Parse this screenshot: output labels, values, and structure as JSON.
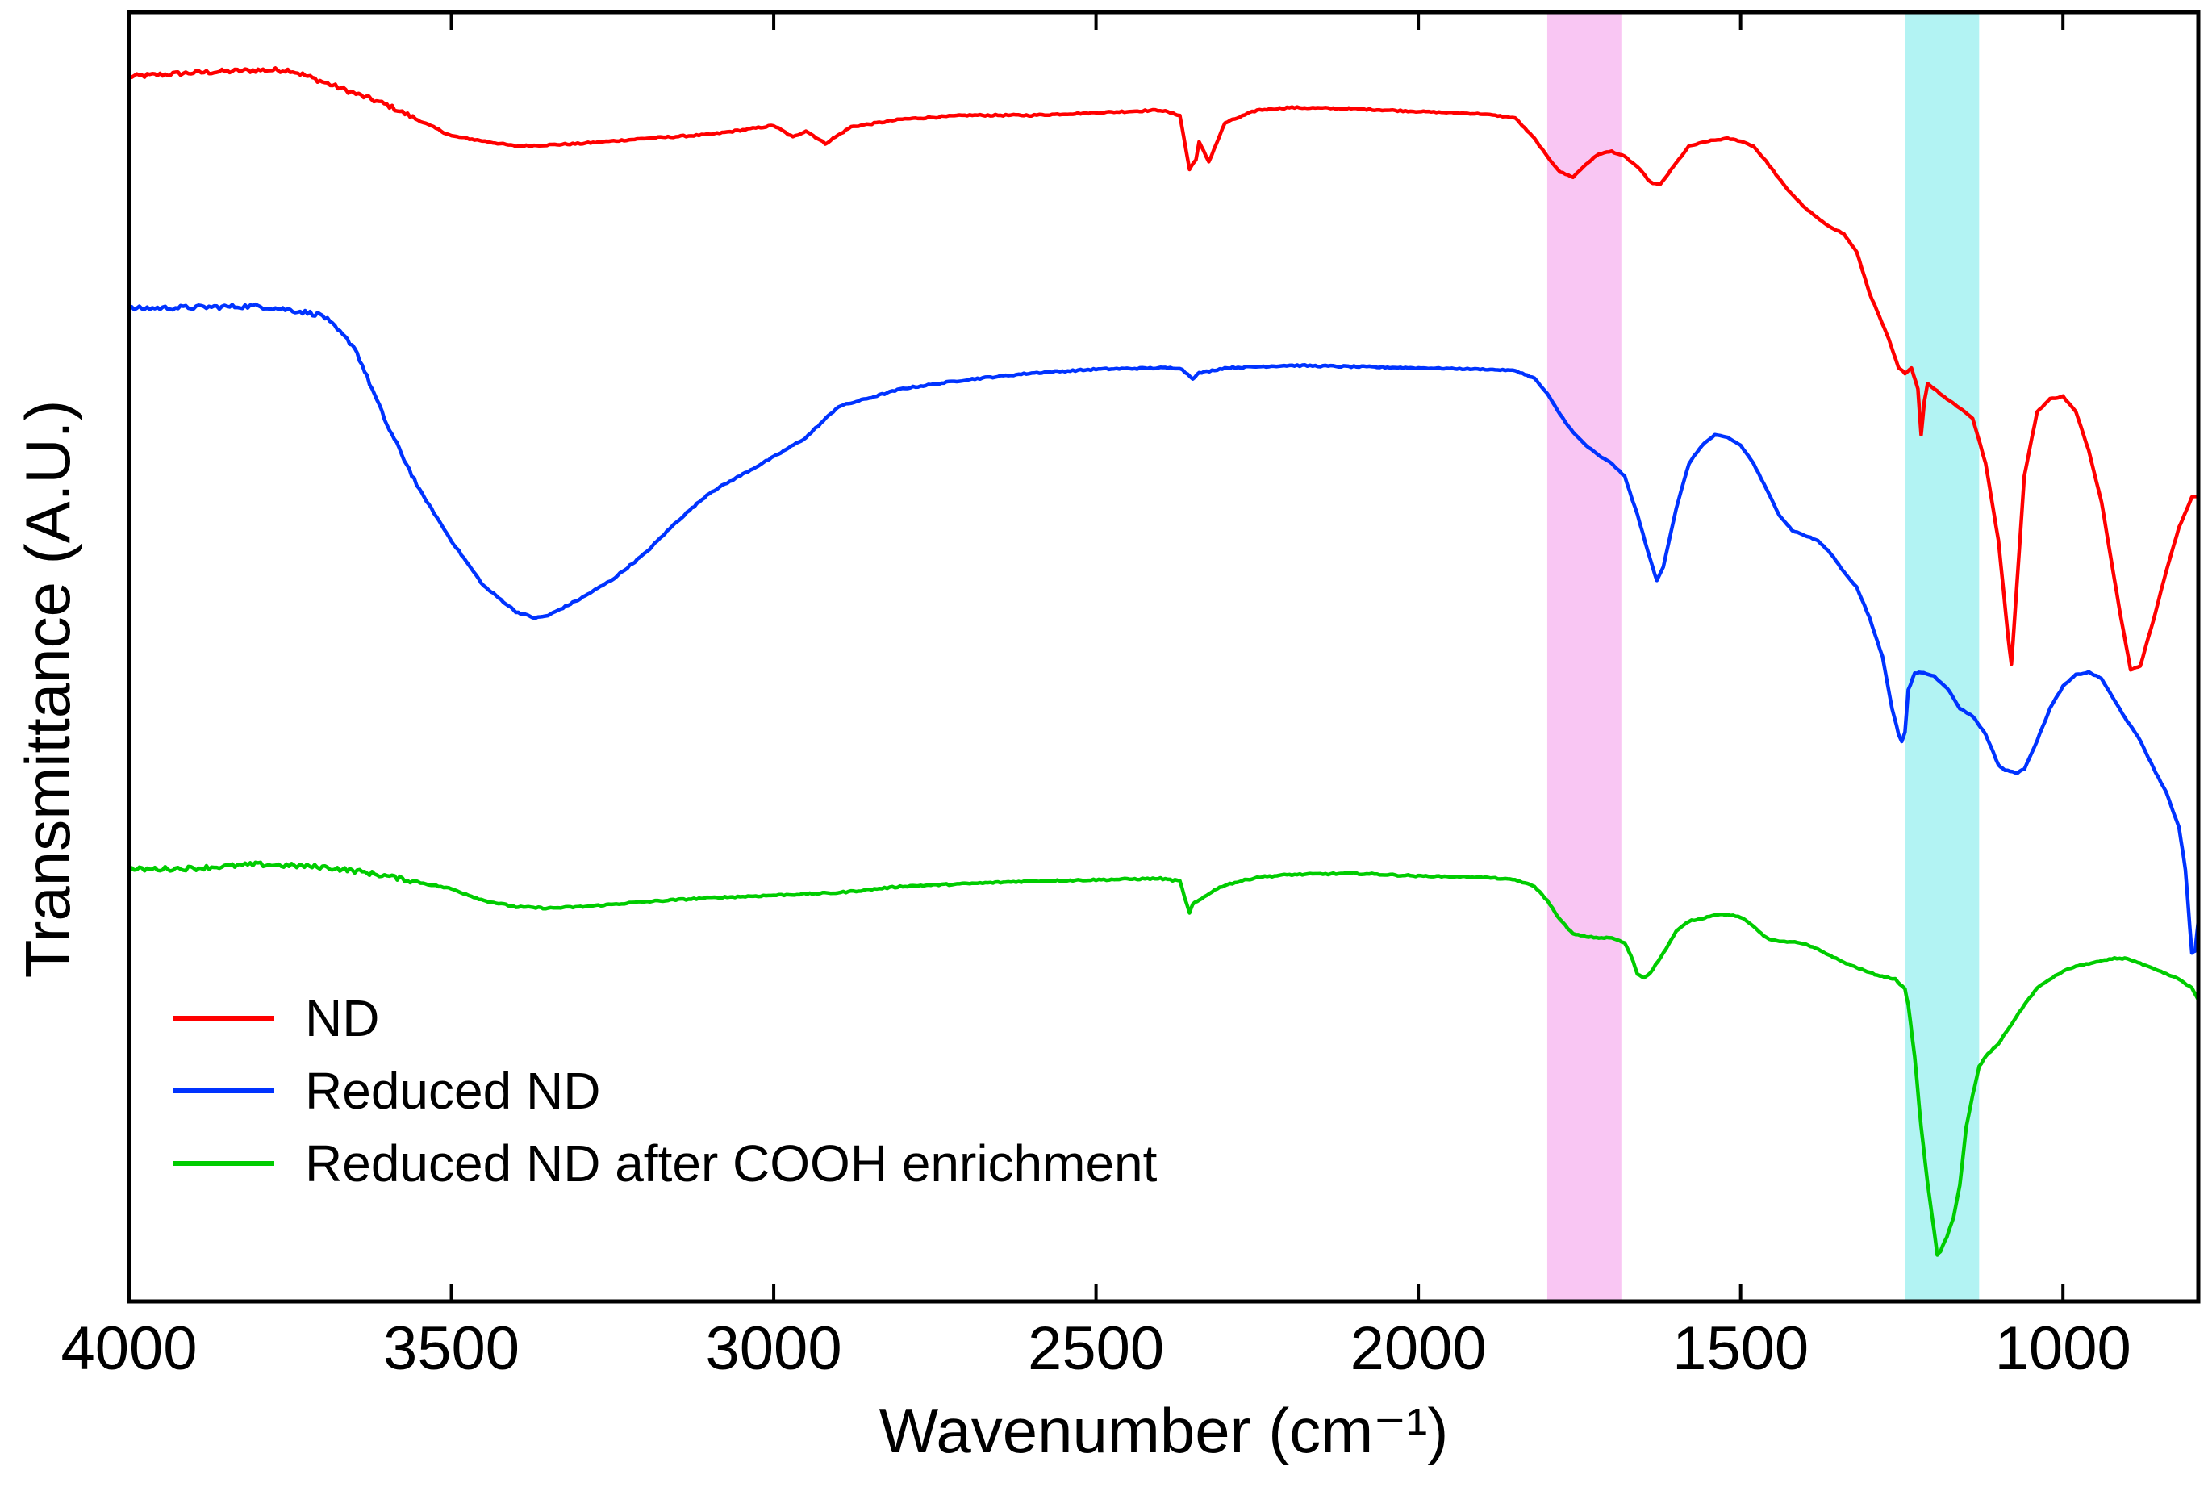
{
  "chart_data": {
    "type": "line",
    "title": "",
    "xlabel": "Wavenumber (cm⁻¹)",
    "ylabel": "Transmittance (A.U.)",
    "xlim": [
      4000,
      790
    ],
    "ylim": [
      0,
      100
    ],
    "x_reversed": true,
    "x_ticks": [
      {
        "value": 4000,
        "label": "4000"
      },
      {
        "value": 3500,
        "label": "3500"
      },
      {
        "value": 3000,
        "label": "3000"
      },
      {
        "value": 2500,
        "label": "2500"
      },
      {
        "value": 2000,
        "label": "2000"
      },
      {
        "value": 1500,
        "label": "1500"
      },
      {
        "value": 1000,
        "label": "1000"
      }
    ],
    "y_ticks_shown": false,
    "grid": false,
    "legend_position": "bottom-left",
    "highlight_bands": [
      {
        "name": "pink-band",
        "x_from": 1800,
        "x_to": 1685,
        "color": "#f7b8f0"
      },
      {
        "name": "cyan-band",
        "x_from": 1245,
        "x_to": 1130,
        "color": "#9ff0f0"
      }
    ],
    "series": [
      {
        "name": "ND",
        "color": "#ff0000",
        "points": [
          [
            4000,
            95.0
          ],
          [
            3900,
            95.3
          ],
          [
            3800,
            95.5
          ],
          [
            3750,
            95.5
          ],
          [
            3700,
            94.6
          ],
          [
            3600,
            92.8
          ],
          [
            3500,
            90.4
          ],
          [
            3400,
            89.6
          ],
          [
            3300,
            89.8
          ],
          [
            3200,
            90.2
          ],
          [
            3100,
            90.5
          ],
          [
            3000,
            91.2
          ],
          [
            2970,
            90.3
          ],
          [
            2950,
            90.8
          ],
          [
            2920,
            89.8
          ],
          [
            2880,
            91.1
          ],
          [
            2800,
            91.7
          ],
          [
            2700,
            92.0
          ],
          [
            2600,
            92.0
          ],
          [
            2500,
            92.2
          ],
          [
            2400,
            92.4
          ],
          [
            2370,
            92.0
          ],
          [
            2355,
            87.8
          ],
          [
            2345,
            88.6
          ],
          [
            2340,
            89.9
          ],
          [
            2325,
            88.4
          ],
          [
            2300,
            91.4
          ],
          [
            2250,
            92.4
          ],
          [
            2200,
            92.6
          ],
          [
            2100,
            92.5
          ],
          [
            2000,
            92.3
          ],
          [
            1900,
            92.1
          ],
          [
            1850,
            91.8
          ],
          [
            1820,
            90.2
          ],
          [
            1800,
            88.8
          ],
          [
            1780,
            87.6
          ],
          [
            1760,
            87.2
          ],
          [
            1740,
            88.2
          ],
          [
            1720,
            89.0
          ],
          [
            1700,
            89.2
          ],
          [
            1680,
            88.8
          ],
          [
            1660,
            88.0
          ],
          [
            1640,
            86.8
          ],
          [
            1625,
            86.6
          ],
          [
            1600,
            88.3
          ],
          [
            1580,
            89.6
          ],
          [
            1550,
            90.0
          ],
          [
            1520,
            90.2
          ],
          [
            1500,
            90.0
          ],
          [
            1480,
            89.6
          ],
          [
            1460,
            88.4
          ],
          [
            1430,
            86.4
          ],
          [
            1400,
            84.8
          ],
          [
            1370,
            83.6
          ],
          [
            1340,
            82.8
          ],
          [
            1320,
            81.4
          ],
          [
            1300,
            78.2
          ],
          [
            1270,
            74.6
          ],
          [
            1255,
            72.4
          ],
          [
            1245,
            72.0
          ],
          [
            1235,
            72.4
          ],
          [
            1225,
            70.8
          ],
          [
            1220,
            67.2
          ],
          [
            1215,
            69.8
          ],
          [
            1210,
            71.2
          ],
          [
            1195,
            70.6
          ],
          [
            1180,
            70.0
          ],
          [
            1160,
            69.3
          ],
          [
            1140,
            68.5
          ],
          [
            1120,
            65.0
          ],
          [
            1100,
            59.0
          ],
          [
            1085,
            51.5
          ],
          [
            1080,
            49.4
          ],
          [
            1075,
            53.0
          ],
          [
            1060,
            64.0
          ],
          [
            1040,
            69.0
          ],
          [
            1020,
            70.0
          ],
          [
            1000,
            70.2
          ],
          [
            980,
            69.0
          ],
          [
            960,
            66.0
          ],
          [
            940,
            62.0
          ],
          [
            920,
            56.0
          ],
          [
            910,
            53.0
          ],
          [
            895,
            49.0
          ],
          [
            880,
            49.3
          ],
          [
            860,
            52.8
          ],
          [
            840,
            56.6
          ],
          [
            820,
            60.0
          ],
          [
            800,
            62.4
          ],
          [
            790,
            62.5
          ]
        ]
      },
      {
        "name": "Reduced ND",
        "color": "#0033ff",
        "points": [
          [
            4000,
            77.0
          ],
          [
            3900,
            77.1
          ],
          [
            3800,
            77.2
          ],
          [
            3750,
            76.9
          ],
          [
            3700,
            76.5
          ],
          [
            3650,
            74.0
          ],
          [
            3600,
            68.0
          ],
          [
            3550,
            63.0
          ],
          [
            3500,
            59.0
          ],
          [
            3450,
            55.5
          ],
          [
            3400,
            53.5
          ],
          [
            3370,
            53.0
          ],
          [
            3350,
            53.2
          ],
          [
            3300,
            54.5
          ],
          [
            3250,
            56.0
          ],
          [
            3200,
            58.0
          ],
          [
            3150,
            60.5
          ],
          [
            3100,
            62.7
          ],
          [
            3000,
            65.5
          ],
          [
            2950,
            67.0
          ],
          [
            2900,
            69.4
          ],
          [
            2800,
            70.8
          ],
          [
            2700,
            71.5
          ],
          [
            2600,
            72.0
          ],
          [
            2500,
            72.3
          ],
          [
            2400,
            72.4
          ],
          [
            2370,
            72.4
          ],
          [
            2350,
            71.6
          ],
          [
            2340,
            72.0
          ],
          [
            2300,
            72.4
          ],
          [
            2200,
            72.6
          ],
          [
            2100,
            72.5
          ],
          [
            2000,
            72.4
          ],
          [
            1900,
            72.3
          ],
          [
            1850,
            72.2
          ],
          [
            1820,
            71.6
          ],
          [
            1800,
            70.4
          ],
          [
            1780,
            68.8
          ],
          [
            1760,
            67.4
          ],
          [
            1740,
            66.4
          ],
          [
            1720,
            65.6
          ],
          [
            1700,
            65.0
          ],
          [
            1680,
            64.0
          ],
          [
            1660,
            61.0
          ],
          [
            1640,
            57.5
          ],
          [
            1630,
            55.9
          ],
          [
            1620,
            57.0
          ],
          [
            1600,
            61.5
          ],
          [
            1580,
            65.0
          ],
          [
            1560,
            66.4
          ],
          [
            1540,
            67.2
          ],
          [
            1520,
            67.0
          ],
          [
            1500,
            66.4
          ],
          [
            1480,
            65.0
          ],
          [
            1460,
            63.0
          ],
          [
            1440,
            61.0
          ],
          [
            1420,
            59.8
          ],
          [
            1400,
            59.4
          ],
          [
            1380,
            59.0
          ],
          [
            1360,
            58.0
          ],
          [
            1340,
            56.6
          ],
          [
            1320,
            55.4
          ],
          [
            1300,
            53.0
          ],
          [
            1280,
            50.0
          ],
          [
            1265,
            46.0
          ],
          [
            1255,
            44.0
          ],
          [
            1250,
            43.4
          ],
          [
            1245,
            44.2
          ],
          [
            1240,
            47.4
          ],
          [
            1230,
            48.7
          ],
          [
            1220,
            48.8
          ],
          [
            1200,
            48.5
          ],
          [
            1180,
            47.6
          ],
          [
            1160,
            46.0
          ],
          [
            1140,
            45.4
          ],
          [
            1120,
            44.0
          ],
          [
            1100,
            41.6
          ],
          [
            1090,
            41.2
          ],
          [
            1070,
            41.0
          ],
          [
            1060,
            41.3
          ],
          [
            1040,
            43.5
          ],
          [
            1020,
            46.0
          ],
          [
            1000,
            47.7
          ],
          [
            980,
            48.6
          ],
          [
            960,
            48.8
          ],
          [
            940,
            48.3
          ],
          [
            920,
            46.6
          ],
          [
            900,
            45.0
          ],
          [
            880,
            43.5
          ],
          [
            860,
            41.4
          ],
          [
            840,
            39.5
          ],
          [
            820,
            36.8
          ],
          [
            810,
            33.5
          ],
          [
            800,
            27.0
          ],
          [
            795,
            27.2
          ],
          [
            790,
            29.5
          ]
        ]
      },
      {
        "name": "Reduced ND after COOH enrichment",
        "color": "#00cc00",
        "points": [
          [
            4000,
            33.5
          ],
          [
            3900,
            33.6
          ],
          [
            3800,
            33.9
          ],
          [
            3700,
            33.7
          ],
          [
            3650,
            33.4
          ],
          [
            3600,
            33.0
          ],
          [
            3500,
            32.0
          ],
          [
            3450,
            31.1
          ],
          [
            3400,
            30.6
          ],
          [
            3350,
            30.5
          ],
          [
            3300,
            30.6
          ],
          [
            3200,
            31.0
          ],
          [
            3100,
            31.3
          ],
          [
            3000,
            31.5
          ],
          [
            2900,
            31.7
          ],
          [
            2800,
            32.2
          ],
          [
            2700,
            32.4
          ],
          [
            2600,
            32.6
          ],
          [
            2500,
            32.7
          ],
          [
            2400,
            32.8
          ],
          [
            2370,
            32.6
          ],
          [
            2355,
            30.1
          ],
          [
            2350,
            30.8
          ],
          [
            2340,
            31.1
          ],
          [
            2320,
            31.8
          ],
          [
            2300,
            32.3
          ],
          [
            2250,
            32.9
          ],
          [
            2200,
            33.1
          ],
          [
            2100,
            33.2
          ],
          [
            2000,
            33.0
          ],
          [
            1900,
            32.9
          ],
          [
            1850,
            32.7
          ],
          [
            1820,
            32.2
          ],
          [
            1800,
            31.1
          ],
          [
            1780,
            29.6
          ],
          [
            1760,
            28.5
          ],
          [
            1740,
            28.3
          ],
          [
            1720,
            28.2
          ],
          [
            1700,
            28.2
          ],
          [
            1680,
            27.8
          ],
          [
            1670,
            26.8
          ],
          [
            1660,
            25.4
          ],
          [
            1650,
            25.1
          ],
          [
            1640,
            25.5
          ],
          [
            1620,
            27.0
          ],
          [
            1600,
            28.7
          ],
          [
            1580,
            29.5
          ],
          [
            1560,
            29.7
          ],
          [
            1540,
            30.0
          ],
          [
            1520,
            30.0
          ],
          [
            1500,
            29.8
          ],
          [
            1480,
            29.1
          ],
          [
            1460,
            28.2
          ],
          [
            1440,
            27.9
          ],
          [
            1420,
            27.9
          ],
          [
            1400,
            27.7
          ],
          [
            1380,
            27.3
          ],
          [
            1360,
            26.8
          ],
          [
            1340,
            26.3
          ],
          [
            1320,
            25.9
          ],
          [
            1300,
            25.5
          ],
          [
            1280,
            25.2
          ],
          [
            1260,
            25.0
          ],
          [
            1245,
            24.2
          ],
          [
            1240,
            23.0
          ],
          [
            1230,
            19.0
          ],
          [
            1220,
            13.5
          ],
          [
            1210,
            9.2
          ],
          [
            1200,
            5.5
          ],
          [
            1195,
            3.6
          ],
          [
            1190,
            3.9
          ],
          [
            1180,
            5.0
          ],
          [
            1170,
            6.5
          ],
          [
            1160,
            9.0
          ],
          [
            1150,
            13.5
          ],
          [
            1140,
            16.0
          ],
          [
            1130,
            18.2
          ],
          [
            1120,
            19.0
          ],
          [
            1100,
            20.0
          ],
          [
            1080,
            21.5
          ],
          [
            1060,
            23.0
          ],
          [
            1040,
            24.3
          ],
          [
            1020,
            25.0
          ],
          [
            1000,
            25.6
          ],
          [
            980,
            26.0
          ],
          [
            960,
            26.2
          ],
          [
            940,
            26.4
          ],
          [
            920,
            26.6
          ],
          [
            900,
            26.6
          ],
          [
            880,
            26.2
          ],
          [
            860,
            25.8
          ],
          [
            840,
            25.4
          ],
          [
            820,
            25.0
          ],
          [
            800,
            24.3
          ],
          [
            790,
            23.4
          ]
        ]
      }
    ]
  }
}
